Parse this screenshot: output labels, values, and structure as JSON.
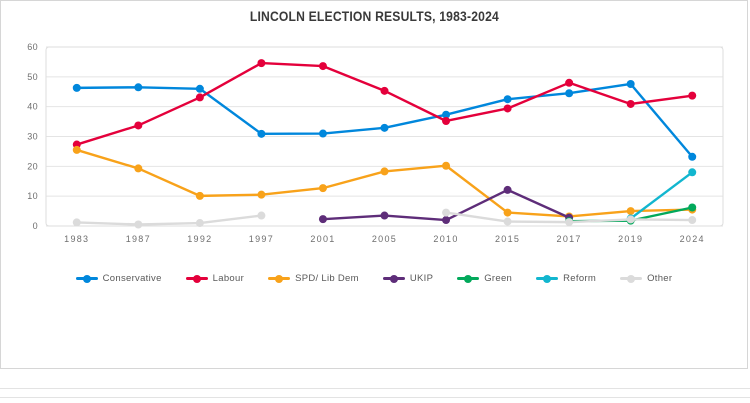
{
  "chart_data": {
    "type": "line",
    "title": "LINCOLN ELECTION RESULTS, 1983-2024",
    "categories": [
      "1983",
      "1987",
      "1992",
      "1997",
      "2001",
      "2005",
      "2010",
      "2015",
      "2017",
      "2019",
      "2024"
    ],
    "series": [
      {
        "name": "Conservative",
        "color": "#0087DC",
        "values": [
          46.3,
          46.5,
          46.0,
          30.9,
          31.0,
          32.9,
          37.3,
          42.5,
          44.5,
          47.6,
          23.2
        ]
      },
      {
        "name": "Labour",
        "color": "#E4003B",
        "values": [
          27.3,
          33.7,
          43.1,
          54.6,
          53.6,
          45.3,
          35.2,
          39.4,
          48.0,
          40.9,
          43.7
        ]
      },
      {
        "name": "SPD/ Lib Dem",
        "color": "#F8A21A",
        "values": [
          25.5,
          19.3,
          10.1,
          10.5,
          12.7,
          18.3,
          20.2,
          4.5,
          3.2,
          5.0,
          5.5
        ]
      },
      {
        "name": "UKIP",
        "color": "#5E2D79",
        "values": [
          null,
          null,
          null,
          null,
          2.3,
          3.5,
          2.0,
          12.1,
          2.8,
          null,
          null
        ]
      },
      {
        "name": "Green",
        "color": "#02A95B",
        "values": [
          null,
          null,
          null,
          null,
          null,
          null,
          null,
          null,
          1.6,
          1.8,
          6.2
        ]
      },
      {
        "name": "Reform",
        "color": "#12B6CF",
        "values": [
          null,
          null,
          null,
          null,
          null,
          null,
          null,
          null,
          null,
          2.5,
          18.0
        ]
      },
      {
        "name": "Other",
        "color": "#DBDBDB",
        "values": [
          1.2,
          0.5,
          1.0,
          3.5,
          null,
          null,
          4.5,
          1.5,
          1.3,
          2.2,
          2.0
        ]
      }
    ],
    "ylim": [
      0,
      60
    ],
    "yticks": [
      0,
      10,
      20,
      30,
      40,
      50,
      60
    ],
    "xlabel": "",
    "ylabel": "",
    "grid": true,
    "legend_position": "bottom",
    "axis_text_color": "#6e6e6e",
    "grid_color": "#e4e4e4",
    "frame_color": "#dedede"
  }
}
